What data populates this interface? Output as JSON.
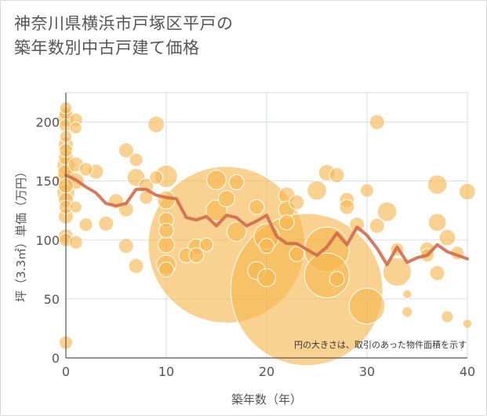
{
  "chart_data": {
    "type": "scatter",
    "title_lines": [
      "神奈川県横浜市戸塚区平戸の",
      "築年数別中古戸建て価格"
    ],
    "xlabel": "築年数（年）",
    "ylabel": "坪（3.3㎡）単価（万円）",
    "xlim": [
      0,
      40
    ],
    "ylim": [
      0,
      225
    ],
    "x_ticks": [
      0,
      10,
      20,
      30,
      40
    ],
    "y_ticks": [
      0,
      50,
      100,
      150,
      200
    ],
    "grid": true,
    "note": "円の大きさは、取引のあった物件面積を示す",
    "colors": {
      "bubble": "#f5b74e",
      "bubble_edge": "#ffffff",
      "line": "#d4694a",
      "grid": "#d6dee6",
      "axis": "#555555"
    },
    "bubbles": [
      {
        "x": 0,
        "y": 212,
        "s": 0.8
      },
      {
        "x": 0,
        "y": 207,
        "s": 0.9
      },
      {
        "x": 0,
        "y": 203,
        "s": 1.1
      },
      {
        "x": 0,
        "y": 197,
        "s": 0.9
      },
      {
        "x": 0,
        "y": 188,
        "s": 0.8
      },
      {
        "x": 0,
        "y": 181,
        "s": 1.0
      },
      {
        "x": 0,
        "y": 176,
        "s": 0.9
      },
      {
        "x": 0,
        "y": 170,
        "s": 1.0
      },
      {
        "x": 0,
        "y": 163,
        "s": 1.2
      },
      {
        "x": 0,
        "y": 157,
        "s": 1.1
      },
      {
        "x": 0,
        "y": 151,
        "s": 1.3
      },
      {
        "x": 0,
        "y": 146,
        "s": 1.0
      },
      {
        "x": 0,
        "y": 140,
        "s": 1.2
      },
      {
        "x": 0,
        "y": 134,
        "s": 1.0
      },
      {
        "x": 0,
        "y": 128,
        "s": 0.9
      },
      {
        "x": 0,
        "y": 120,
        "s": 1.0
      },
      {
        "x": 0,
        "y": 103,
        "s": 1.0
      },
      {
        "x": 0,
        "y": 100,
        "s": 0.9
      },
      {
        "x": 0,
        "y": 13,
        "s": 0.9
      },
      {
        "x": 1,
        "y": 202,
        "s": 0.9
      },
      {
        "x": 1,
        "y": 195,
        "s": 0.8
      },
      {
        "x": 1,
        "y": 164,
        "s": 1.0
      },
      {
        "x": 1,
        "y": 150,
        "s": 1.1
      },
      {
        "x": 1,
        "y": 128,
        "s": 0.8
      },
      {
        "x": 1,
        "y": 98,
        "s": 0.9
      },
      {
        "x": 2,
        "y": 160,
        "s": 0.9
      },
      {
        "x": 2,
        "y": 113,
        "s": 0.9
      },
      {
        "x": 3,
        "y": 158,
        "s": 1.0
      },
      {
        "x": 4,
        "y": 114,
        "s": 1.0
      },
      {
        "x": 5,
        "y": 133,
        "s": 1.0
      },
      {
        "x": 6,
        "y": 176,
        "s": 1.0
      },
      {
        "x": 6,
        "y": 126,
        "s": 1.0
      },
      {
        "x": 6,
        "y": 95,
        "s": 1.0
      },
      {
        "x": 7,
        "y": 168,
        "s": 0.9
      },
      {
        "x": 7,
        "y": 153,
        "s": 1.2
      },
      {
        "x": 7,
        "y": 78,
        "s": 1.0
      },
      {
        "x": 8,
        "y": 146,
        "s": 1.0
      },
      {
        "x": 8,
        "y": 136,
        "s": 0.9
      },
      {
        "x": 9,
        "y": 198,
        "s": 1.1
      },
      {
        "x": 9,
        "y": 153,
        "s": 0.9
      },
      {
        "x": 10,
        "y": 154,
        "s": 1.5
      },
      {
        "x": 10,
        "y": 134,
        "s": 1.2
      },
      {
        "x": 10,
        "y": 117,
        "s": 1.0
      },
      {
        "x": 10,
        "y": 108,
        "s": 1.0
      },
      {
        "x": 10,
        "y": 96,
        "s": 1.1
      },
      {
        "x": 10,
        "y": 79,
        "s": 1.3
      },
      {
        "x": 10,
        "y": 75,
        "s": 1.0
      },
      {
        "x": 12,
        "y": 87,
        "s": 1.0
      },
      {
        "x": 13,
        "y": 94,
        "s": 1.1
      },
      {
        "x": 13,
        "y": 87,
        "s": 1.0
      },
      {
        "x": 14,
        "y": 96,
        "s": 0.9
      },
      {
        "x": 15,
        "y": 151,
        "s": 1.3
      },
      {
        "x": 15,
        "y": 125,
        "s": 1.4
      },
      {
        "x": 16,
        "y": 135,
        "s": 1.1
      },
      {
        "x": 16,
        "y": 96,
        "s": 10.5
      },
      {
        "x": 17,
        "y": 149,
        "s": 1.0
      },
      {
        "x": 17,
        "y": 107,
        "s": 1.3
      },
      {
        "x": 19,
        "y": 128,
        "s": 1.0
      },
      {
        "x": 19,
        "y": 74,
        "s": 1.2
      },
      {
        "x": 20,
        "y": 68,
        "s": 1.2
      },
      {
        "x": 20,
        "y": 103,
        "s": 1.7
      },
      {
        "x": 20,
        "y": 95,
        "s": 1.0
      },
      {
        "x": 22,
        "y": 138,
        "s": 1.1
      },
      {
        "x": 22,
        "y": 126,
        "s": 1.1
      },
      {
        "x": 22,
        "y": 115,
        "s": 1.0
      },
      {
        "x": 23,
        "y": 132,
        "s": 1.0
      },
      {
        "x": 23,
        "y": 88,
        "s": 1.0
      },
      {
        "x": 24,
        "y": 58,
        "s": 10.2
      },
      {
        "x": 25,
        "y": 142,
        "s": 1.3
      },
      {
        "x": 26,
        "y": 157,
        "s": 1.1
      },
      {
        "x": 26,
        "y": 92,
        "s": 3.0
      },
      {
        "x": 26,
        "y": 70,
        "s": 3.0
      },
      {
        "x": 27,
        "y": 155,
        "s": 1.0
      },
      {
        "x": 27,
        "y": 67,
        "s": 1.0
      },
      {
        "x": 28,
        "y": 134,
        "s": 1.0
      },
      {
        "x": 28,
        "y": 128,
        "s": 1.0
      },
      {
        "x": 29,
        "y": 113,
        "s": 1.0
      },
      {
        "x": 30,
        "y": 142,
        "s": 0.9
      },
      {
        "x": 30,
        "y": 44,
        "s": 2.4
      },
      {
        "x": 31,
        "y": 200,
        "s": 1.0
      },
      {
        "x": 31,
        "y": 112,
        "s": 1.0
      },
      {
        "x": 32,
        "y": 124,
        "s": 1.3
      },
      {
        "x": 33,
        "y": 92,
        "s": 0.9
      },
      {
        "x": 33,
        "y": 73,
        "s": 1.9
      },
      {
        "x": 34,
        "y": 54,
        "s": 0.6
      },
      {
        "x": 34,
        "y": 39,
        "s": 0.7
      },
      {
        "x": 36,
        "y": 92,
        "s": 1.0
      },
      {
        "x": 36,
        "y": 87,
        "s": 0.9
      },
      {
        "x": 37,
        "y": 147,
        "s": 1.3
      },
      {
        "x": 37,
        "y": 115,
        "s": 1.2
      },
      {
        "x": 37,
        "y": 72,
        "s": 1.0
      },
      {
        "x": 38,
        "y": 102,
        "s": 1.1
      },
      {
        "x": 38,
        "y": 35,
        "s": 0.8
      },
      {
        "x": 39,
        "y": 89,
        "s": 0.9
      },
      {
        "x": 40,
        "y": 141,
        "s": 1.1
      },
      {
        "x": 40,
        "y": 29,
        "s": 0.6
      }
    ],
    "trend": {
      "x": [
        0,
        1,
        2,
        3,
        4,
        5,
        6,
        7,
        8,
        9,
        10,
        11,
        12,
        13,
        14,
        15,
        16,
        17,
        18,
        19,
        20,
        21,
        22,
        23,
        24,
        25,
        26,
        27,
        28,
        29,
        30,
        31,
        32,
        33,
        34,
        35,
        36,
        37,
        38,
        39,
        40
      ],
      "y": [
        155,
        151,
        145,
        140,
        131,
        129,
        131,
        143,
        143,
        138,
        136,
        135,
        119,
        117,
        120,
        112,
        121,
        119,
        112,
        116,
        121,
        103,
        97,
        97,
        92,
        87,
        94,
        106,
        96,
        111,
        104,
        93,
        79,
        94,
        81,
        85,
        87,
        96,
        90,
        87,
        84
      ]
    }
  }
}
